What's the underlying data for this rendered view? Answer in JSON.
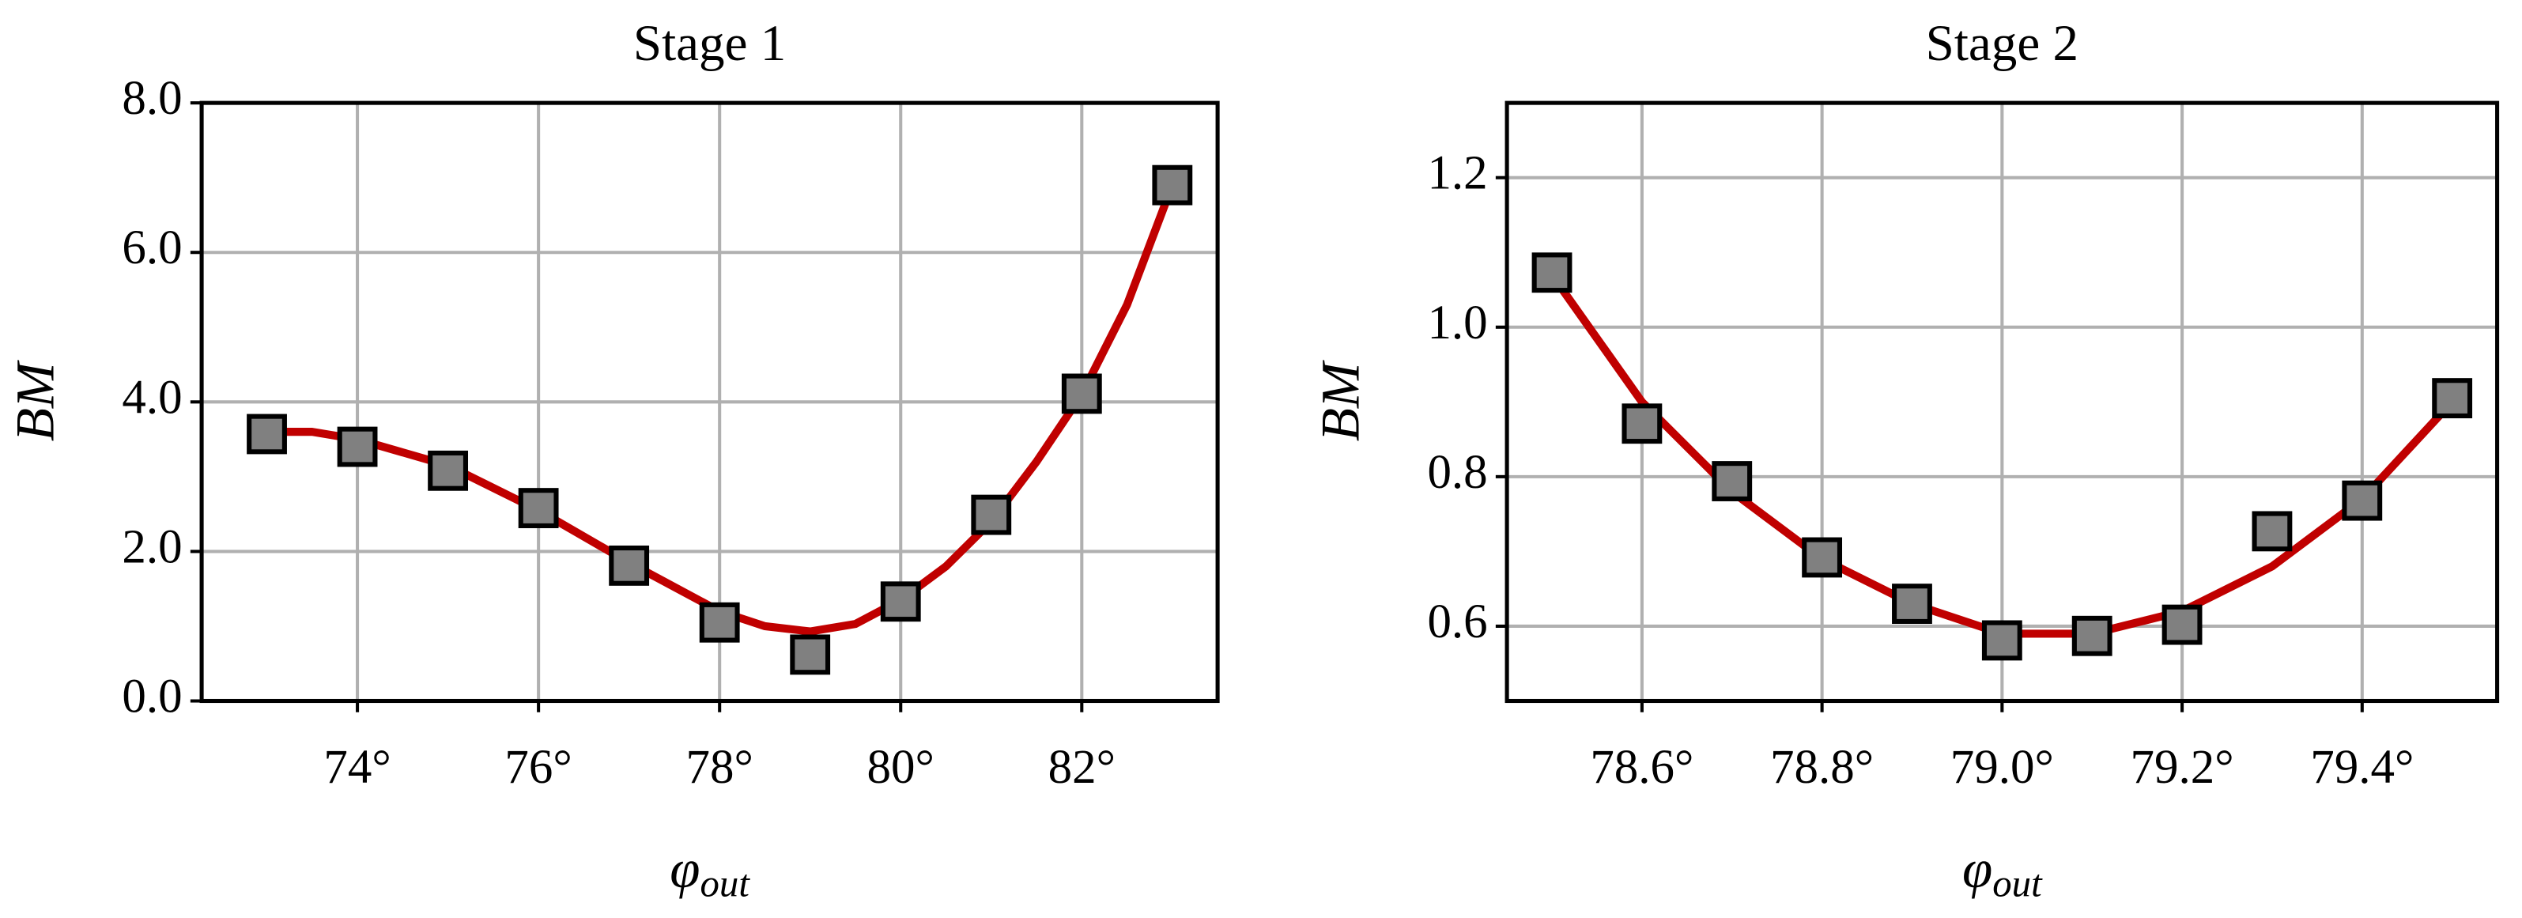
{
  "chart_data": [
    {
      "type": "scatter",
      "title": "Stage 1",
      "xlabel": {
        "symbol": "φ",
        "subscript": "out"
      },
      "ylabel": "BM",
      "x": [
        73,
        74,
        75,
        76,
        77,
        78,
        79,
        80,
        81,
        82,
        83
      ],
      "values": [
        3.57,
        3.4,
        3.08,
        2.58,
        1.81,
        1.05,
        0.62,
        1.33,
        2.49,
        4.11,
        6.9
      ],
      "marker_color": "#808080",
      "fit": {
        "color": "#c00000",
        "x": [
          73,
          73.5,
          74,
          75,
          76,
          77,
          78,
          78.5,
          79,
          79.5,
          80,
          80.5,
          81,
          81.5,
          82,
          82.5,
          83
        ],
        "values": [
          3.6,
          3.6,
          3.5,
          3.15,
          2.55,
          1.85,
          1.2,
          1.0,
          0.93,
          1.03,
          1.35,
          1.8,
          2.4,
          3.2,
          4.1,
          5.3,
          6.9
        ]
      },
      "xlim": [
        72.28,
        83.5
      ],
      "ylim": [
        0,
        8
      ],
      "xticks": [
        {
          "value": 74,
          "label": "74°"
        },
        {
          "value": 76,
          "label": "76°"
        },
        {
          "value": 78,
          "label": "78°"
        },
        {
          "value": 80,
          "label": "80°"
        },
        {
          "value": 82,
          "label": "82°"
        }
      ],
      "yticks": [
        {
          "value": 0,
          "label": "0.0"
        },
        {
          "value": 2,
          "label": "2.0"
        },
        {
          "value": 4,
          "label": "4.0"
        },
        {
          "value": 6,
          "label": "6.0"
        },
        {
          "value": 8,
          "label": "8.0"
        }
      ],
      "grid": true
    },
    {
      "type": "scatter",
      "title": "Stage 2",
      "xlabel": {
        "symbol": "φ",
        "subscript": "out"
      },
      "ylabel": "BM",
      "x": [
        78.5,
        78.6,
        78.7,
        78.8,
        78.9,
        79.0,
        79.1,
        79.2,
        79.3,
        79.4,
        79.5
      ],
      "values": [
        1.073,
        0.871,
        0.794,
        0.692,
        0.63,
        0.581,
        0.587,
        0.602,
        0.727,
        0.768,
        0.905
      ],
      "marker_color": "#808080",
      "fit": {
        "color": "#c00000",
        "x": [
          78.5,
          78.6,
          78.7,
          78.8,
          78.9,
          79.0,
          79.1,
          79.2,
          79.3,
          79.4,
          79.5
        ],
        "values": [
          1.07,
          0.9,
          0.78,
          0.69,
          0.63,
          0.59,
          0.59,
          0.62,
          0.68,
          0.77,
          0.9
        ]
      },
      "xlim": [
        78.45,
        79.55
      ],
      "ylim": [
        0.5,
        1.3
      ],
      "xticks": [
        {
          "value": 78.6,
          "label": "78.6°"
        },
        {
          "value": 78.8,
          "label": "78.8°"
        },
        {
          "value": 79.0,
          "label": "79.0°"
        },
        {
          "value": 79.2,
          "label": "79.2°"
        },
        {
          "value": 79.4,
          "label": "79.4°"
        }
      ],
      "yticks": [
        0.6,
        0.8,
        {
          "value": 1.0,
          "label": "1.0"
        },
        1.2
      ],
      "grid": true
    }
  ]
}
